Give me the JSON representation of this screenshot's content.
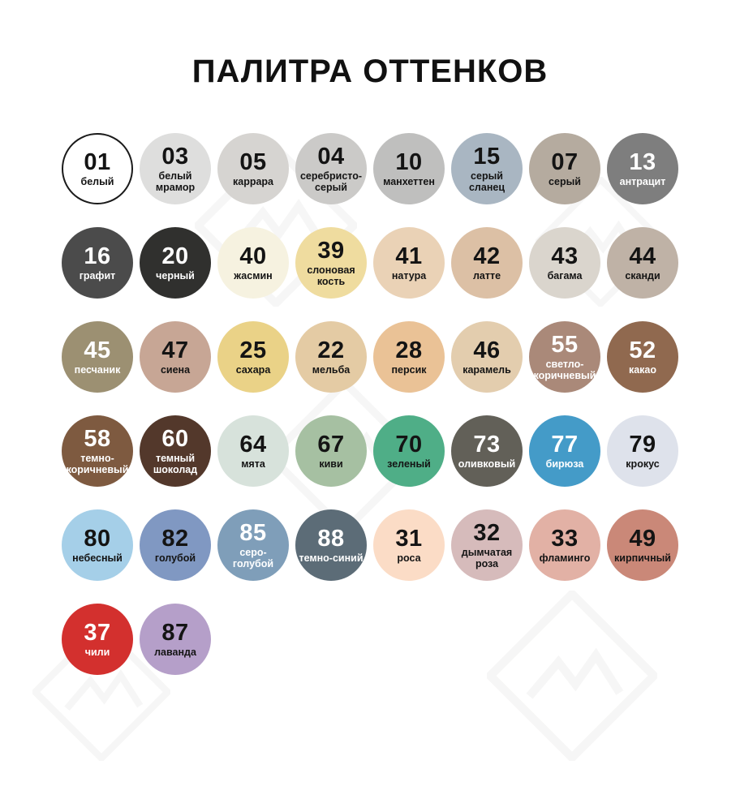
{
  "title": "ПАЛИТРА ОТТЕНКОВ",
  "title_color": "#111111",
  "background": "#ffffff",
  "decor": {
    "watermark_icon": "diamond-zigzag-watermark"
  },
  "swatches": [
    [
      {
        "number": "01",
        "label": "белый",
        "bg": "#ffffff",
        "fg": "#141414",
        "border": "#1a1a1a"
      },
      {
        "number": "03",
        "label": "белый мрамор",
        "bg": "#dededd",
        "fg": "#141414"
      },
      {
        "number": "05",
        "label": "каррара",
        "bg": "#d6d4d1",
        "fg": "#141414"
      },
      {
        "number": "04",
        "label": "серебристо-серый",
        "bg": "#cbcac8",
        "fg": "#141414"
      },
      {
        "number": "10",
        "label": "манхеттен",
        "bg": "#bfbfbe",
        "fg": "#141414"
      },
      {
        "number": "15",
        "label": "серый сланец",
        "bg": "#a9b6c2",
        "fg": "#141414"
      },
      {
        "number": "07",
        "label": "серый",
        "bg": "#b5ab9f",
        "fg": "#141414"
      },
      {
        "number": "13",
        "label": "антрацит",
        "bg": "#7e7e7e",
        "fg": "#ffffff"
      }
    ],
    [
      {
        "number": "16",
        "label": "графит",
        "bg": "#4b4b4b",
        "fg": "#ffffff"
      },
      {
        "number": "20",
        "label": "черный",
        "bg": "#30302e",
        "fg": "#ffffff"
      },
      {
        "number": "40",
        "label": "жасмин",
        "bg": "#f6f2e0",
        "fg": "#141414"
      },
      {
        "number": "39",
        "label": "слоновая кость",
        "bg": "#efdc9f",
        "fg": "#141414"
      },
      {
        "number": "41",
        "label": "натура",
        "bg": "#ead2b6",
        "fg": "#141414"
      },
      {
        "number": "42",
        "label": "латте",
        "bg": "#dcc0a5",
        "fg": "#141414"
      },
      {
        "number": "43",
        "label": "багама",
        "bg": "#dad5cd",
        "fg": "#141414"
      },
      {
        "number": "44",
        "label": "сканди",
        "bg": "#bfb2a6",
        "fg": "#141414"
      }
    ],
    [
      {
        "number": "45",
        "label": "песчаник",
        "bg": "#9c9072",
        "fg": "#ffffff"
      },
      {
        "number": "47",
        "label": "сиена",
        "bg": "#c7a695",
        "fg": "#141414"
      },
      {
        "number": "25",
        "label": "сахара",
        "bg": "#ead287",
        "fg": "#141414"
      },
      {
        "number": "22",
        "label": "мельба",
        "bg": "#e4cba4",
        "fg": "#141414"
      },
      {
        "number": "28",
        "label": "персик",
        "bg": "#eac296",
        "fg": "#141414"
      },
      {
        "number": "46",
        "label": "карамель",
        "bg": "#e3cdae",
        "fg": "#141414"
      },
      {
        "number": "55",
        "label": "светло-коричневый",
        "bg": "#aa8979",
        "fg": "#ffffff"
      },
      {
        "number": "52",
        "label": "какао",
        "bg": "#90694f",
        "fg": "#ffffff"
      }
    ],
    [
      {
        "number": "58",
        "label": "темно-коричневый",
        "bg": "#7e5a40",
        "fg": "#ffffff"
      },
      {
        "number": "60",
        "label": "темный шоколад",
        "bg": "#53382b",
        "fg": "#ffffff"
      },
      {
        "number": "64",
        "label": "мята",
        "bg": "#d7e2db",
        "fg": "#141414"
      },
      {
        "number": "67",
        "label": "киви",
        "bg": "#a6c0a2",
        "fg": "#141414"
      },
      {
        "number": "70",
        "label": "зеленый",
        "bg": "#4fae87",
        "fg": "#141414"
      },
      {
        "number": "73",
        "label": "оливковый",
        "bg": "#626058",
        "fg": "#ffffff"
      },
      {
        "number": "77",
        "label": "бирюза",
        "bg": "#449bc8",
        "fg": "#ffffff"
      },
      {
        "number": "79",
        "label": "крокус",
        "bg": "#dee2eb",
        "fg": "#141414"
      }
    ],
    [
      {
        "number": "80",
        "label": "небесный",
        "bg": "#a5cfe8",
        "fg": "#141414"
      },
      {
        "number": "82",
        "label": "голубой",
        "bg": "#8098c2",
        "fg": "#141414"
      },
      {
        "number": "85",
        "label": "серо-голубой",
        "bg": "#7f9eb9",
        "fg": "#ffffff"
      },
      {
        "number": "88",
        "label": "темно-синий",
        "bg": "#5c6c77",
        "fg": "#ffffff"
      },
      {
        "number": "31",
        "label": "роса",
        "bg": "#fbdcc6",
        "fg": "#141414"
      },
      {
        "number": "32",
        "label": "дымчатая роза",
        "bg": "#d6bbbb",
        "fg": "#141414"
      },
      {
        "number": "33",
        "label": "фламинго",
        "bg": "#e2b1a5",
        "fg": "#141414"
      },
      {
        "number": "49",
        "label": "кирпичный",
        "bg": "#ca8878",
        "fg": "#141414"
      }
    ],
    [
      {
        "number": "37",
        "label": "чили",
        "bg": "#d3302e",
        "fg": "#ffffff"
      },
      {
        "number": "87",
        "label": "лаванда",
        "bg": "#b59fc9",
        "fg": "#141414"
      }
    ]
  ]
}
